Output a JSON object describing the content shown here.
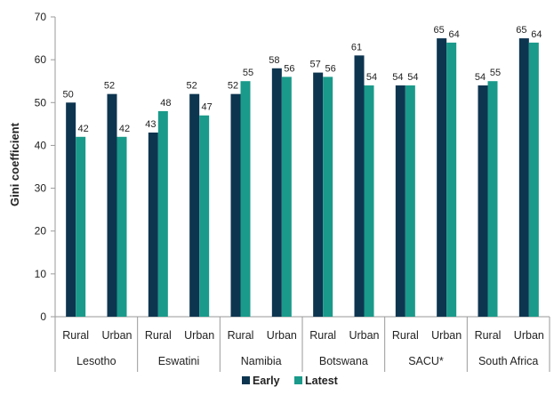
{
  "chart_data": {
    "type": "bar",
    "ylabel": "Gini coefficient",
    "xlabel": "",
    "ylim": [
      0,
      70
    ],
    "yticks": [
      0,
      10,
      20,
      30,
      40,
      50,
      60,
      70
    ],
    "grid": false,
    "legend_position": "bottom",
    "groups": [
      "Lesotho",
      "Eswatini",
      "Namibia",
      "Botswana",
      "SACU*",
      "South Africa"
    ],
    "categories": [
      "Rural",
      "Urban",
      "Rural",
      "Urban",
      "Rural",
      "Urban",
      "Rural",
      "Urban",
      "Rural",
      "Urban",
      "Rural",
      "Urban"
    ],
    "series": [
      {
        "name": "Early",
        "color": "#0d3550",
        "values": [
          50,
          52,
          43,
          52,
          52,
          58,
          57,
          61,
          54,
          65,
          54,
          65
        ]
      },
      {
        "name": "Latest",
        "color": "#1a9a8a",
        "values": [
          42,
          42,
          48,
          47,
          55,
          56,
          56,
          54,
          54,
          64,
          55,
          64
        ]
      }
    ]
  }
}
